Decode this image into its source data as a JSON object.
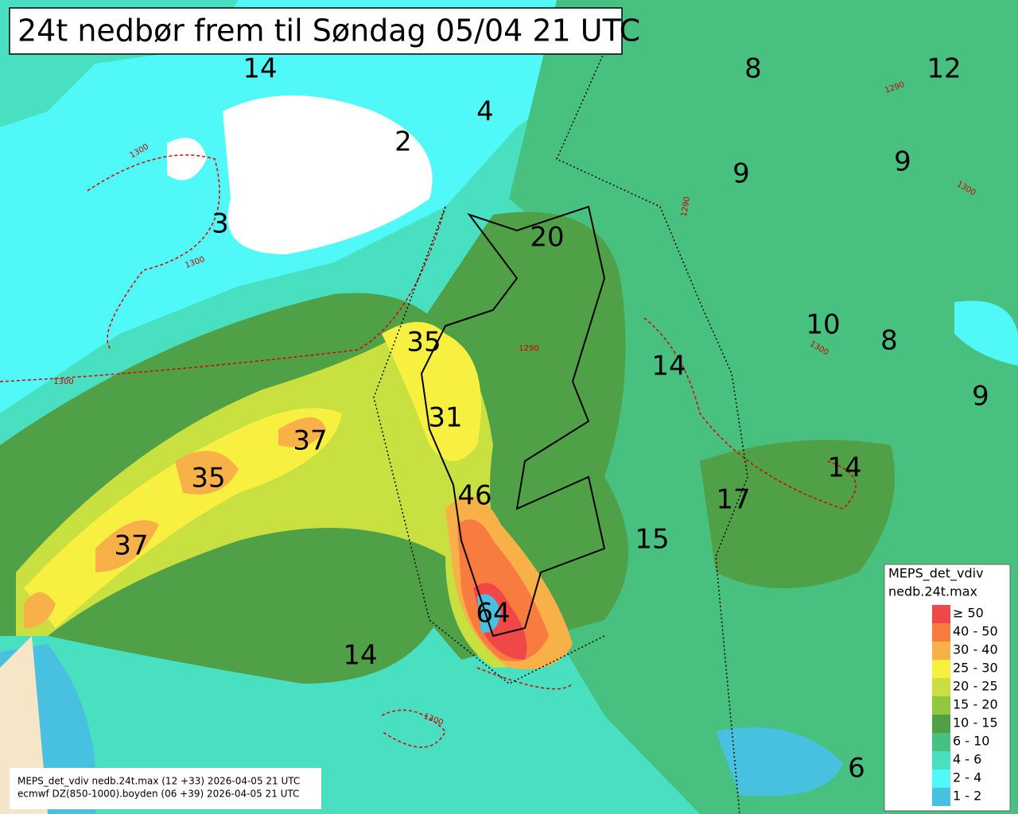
{
  "title": "24t nedbør frem til Søndag 05/04 21 UTC",
  "point_labels": [
    14,
    4,
    2,
    3,
    8,
    12,
    9,
    9,
    20,
    35,
    10,
    8,
    14,
    9,
    31,
    37,
    35,
    14,
    46,
    17,
    15,
    37,
    64,
    14,
    6
  ],
  "contour_labels": [
    "1300",
    "1300",
    "1300",
    "1300",
    "1300",
    "1300",
    "1290",
    "1290",
    "1290"
  ],
  "legend": {
    "title": [
      "MEPS_det_vdiv",
      "nedb.24t.max"
    ],
    "entries": [
      {
        "label": "≥ 50",
        "color": "#f04848"
      },
      {
        "label": "40 - 50",
        "color": "#f87c40"
      },
      {
        "label": "30 - 40",
        "color": "#f8b048"
      },
      {
        "label": "25 - 30",
        "color": "#f8f040"
      },
      {
        "label": "20 - 25",
        "color": "#c8e040"
      },
      {
        "label": "15 - 20",
        "color": "#90c840"
      },
      {
        "label": "10 - 15",
        "color": "#50a048"
      },
      {
        "label": "6 - 10",
        "color": "#48c080"
      },
      {
        "label": "4 - 6",
        "color": "#48e0c0"
      },
      {
        "label": "2 - 4",
        "color": "#50f8f8"
      },
      {
        "label": "1 - 2",
        "color": "#48c0e0"
      }
    ]
  },
  "footer": [
    "MEPS_det_vdiv nedb.24t.max (12 +33) 2026-04-05 21 UTC",
    "ecmwf DZ(850-1000).boyden (06 +39) 2026-04-05 21 UTC"
  ]
}
